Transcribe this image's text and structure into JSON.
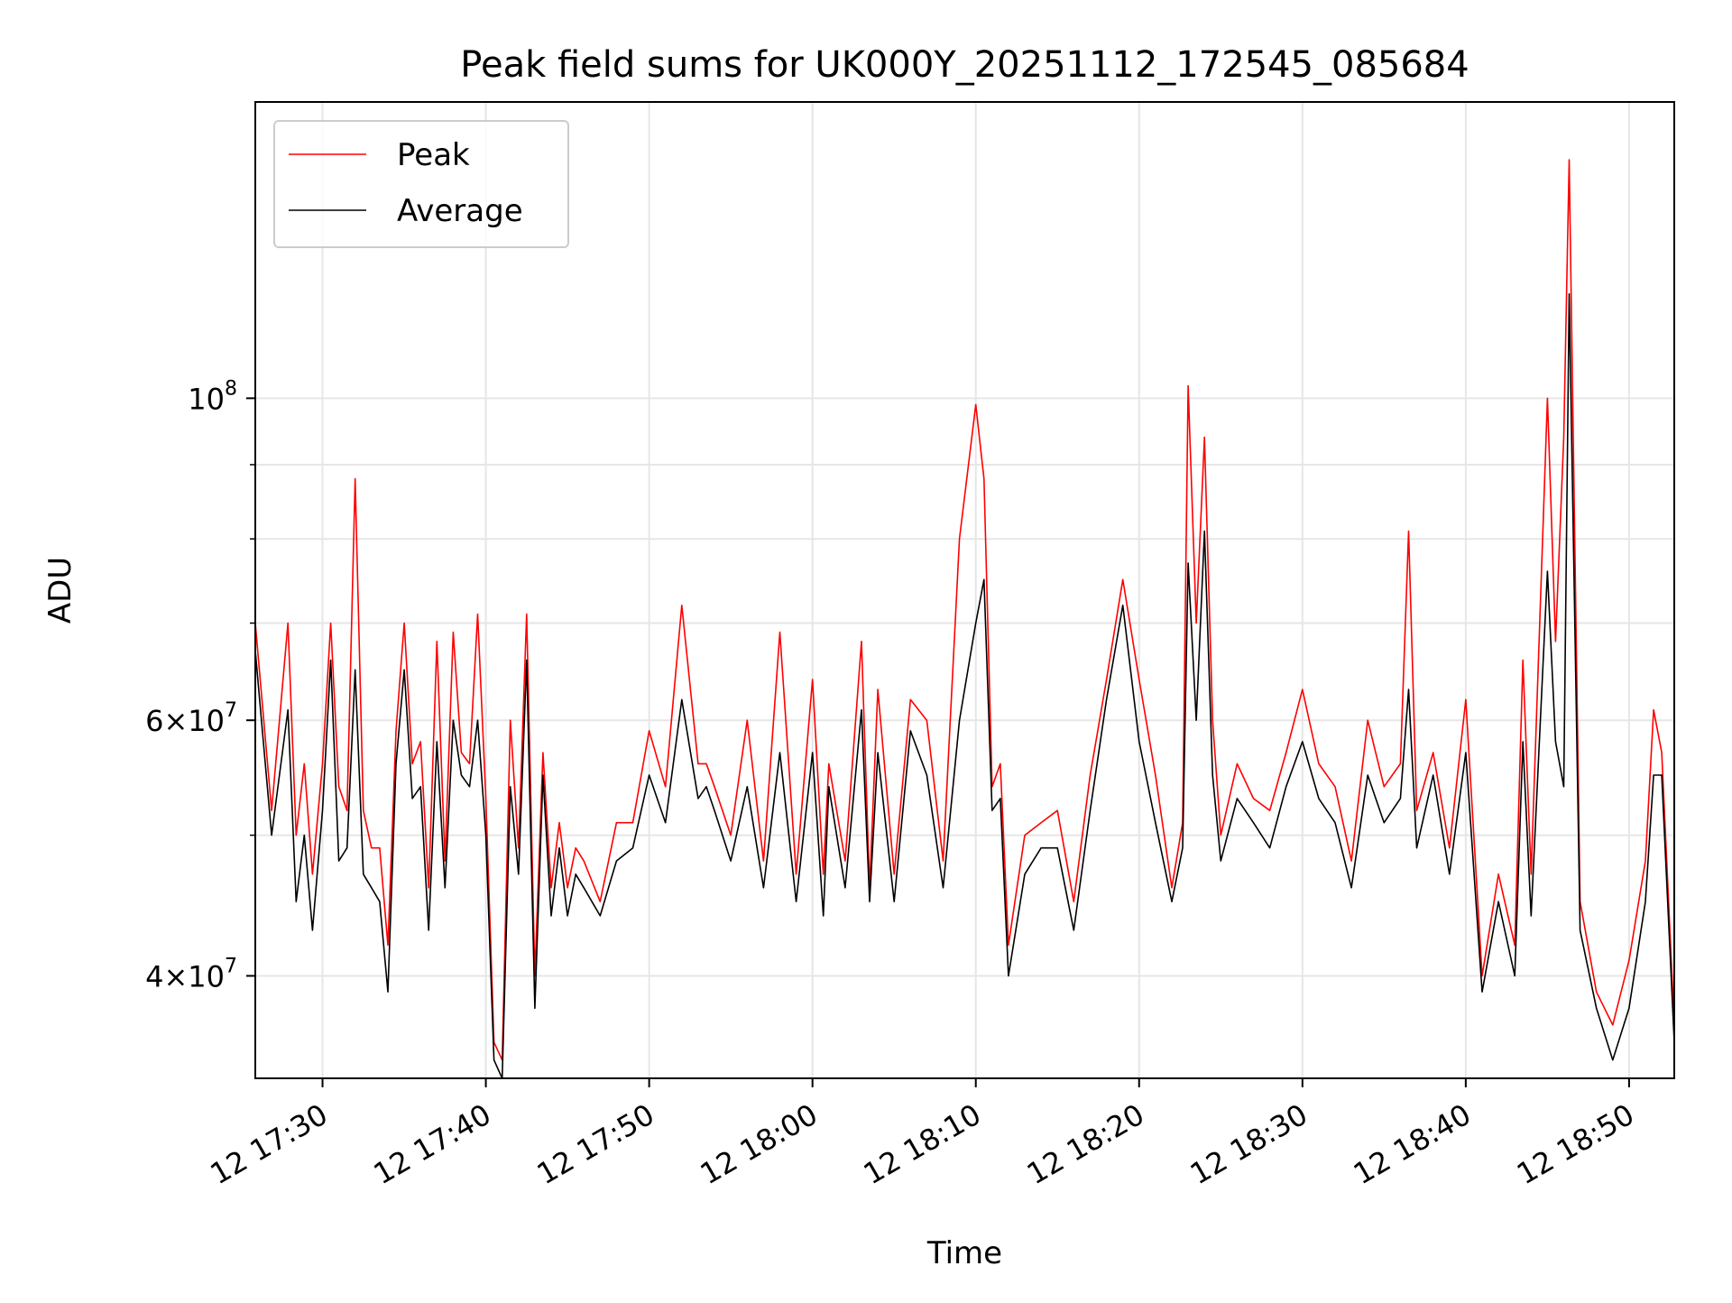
{
  "chart_data": {
    "type": "line",
    "title": "Peak field sums for UK000Y_20251112_172545_085684",
    "xlabel": "Time",
    "ylabel": "ADU",
    "y_scale": "log",
    "ylim": [
      34000000,
      160000000
    ],
    "xlim": [
      "2025-11-12 17:25:53",
      "2025-11-12 18:52:46"
    ],
    "x_ticks": [
      "12 17:30",
      "12 17:40",
      "12 17:50",
      "12 18:00",
      "12 18:10",
      "12 18:20",
      "12 18:30",
      "12 18:40",
      "12 18:50"
    ],
    "y_ticks_major": [
      {
        "value": 40000000,
        "mantissa": "4",
        "exponent": "7"
      },
      {
        "value": 60000000,
        "mantissa": "6",
        "exponent": "7"
      },
      {
        "value": 100000000,
        "mantissa": "",
        "exponent": "8"
      }
    ],
    "y_ticks_minor": [
      50000000,
      70000000,
      80000000,
      90000000
    ],
    "grid": true,
    "legend_position": "top-left",
    "x": [
      "17:25:53",
      "17:26:53",
      "17:27:53",
      "17:28:23",
      "17:28:53",
      "17:29:23",
      "17:30:00",
      "17:30:30",
      "17:31:00",
      "17:31:30",
      "17:32:00",
      "17:32:30",
      "17:33:00",
      "17:33:30",
      "17:34:00",
      "17:34:30",
      "17:35:00",
      "17:35:30",
      "17:36:00",
      "17:36:30",
      "17:37:00",
      "17:37:30",
      "17:38:00",
      "17:38:30",
      "17:39:00",
      "17:39:30",
      "17:40:00",
      "17:40:30",
      "17:41:00",
      "17:41:30",
      "17:42:00",
      "17:42:30",
      "17:43:00",
      "17:43:30",
      "17:44:00",
      "17:44:30",
      "17:45:00",
      "17:45:30",
      "17:46:00",
      "17:47:00",
      "17:48:00",
      "17:49:00",
      "17:50:00",
      "17:51:00",
      "17:52:00",
      "17:53:00",
      "17:53:30",
      "17:54:00",
      "17:55:00",
      "17:56:00",
      "17:57:00",
      "17:58:00",
      "17:59:00",
      "18:00:00",
      "18:00:40",
      "18:01:00",
      "18:02:00",
      "18:03:00",
      "18:03:30",
      "18:04:00",
      "18:05:00",
      "18:06:00",
      "18:07:00",
      "18:08:00",
      "18:09:00",
      "18:10:00",
      "18:10:30",
      "18:11:00",
      "18:11:30",
      "18:12:00",
      "18:13:00",
      "18:14:00",
      "18:15:00",
      "18:16:00",
      "18:17:00",
      "18:18:00",
      "18:19:00",
      "18:20:00",
      "18:21:00",
      "18:22:00",
      "18:22:40",
      "18:23:00",
      "18:23:30",
      "18:24:00",
      "18:24:30",
      "18:25:00",
      "18:26:00",
      "18:27:00",
      "18:28:00",
      "18:29:00",
      "18:30:00",
      "18:31:00",
      "18:32:00",
      "18:33:00",
      "18:34:00",
      "18:35:00",
      "18:36:00",
      "18:36:30",
      "18:37:00",
      "18:38:00",
      "18:39:00",
      "18:40:00",
      "18:41:00",
      "18:42:00",
      "18:43:00",
      "18:43:30",
      "18:44:00",
      "18:45:00",
      "18:45:30",
      "18:46:00",
      "18:46:20",
      "18:47:00",
      "18:48:00",
      "18:49:00",
      "18:50:00",
      "18:51:00",
      "18:51:30",
      "18:52:00",
      "18:52:46"
    ],
    "series": [
      {
        "name": "Peak",
        "color": "#ff0000",
        "values": [
          70000000,
          52000000,
          70000000,
          50000000,
          56000000,
          47000000,
          56000000,
          70000000,
          54000000,
          52000000,
          88000000,
          52000000,
          49000000,
          49000000,
          42000000,
          59000000,
          70000000,
          56000000,
          58000000,
          46000000,
          68000000,
          48000000,
          69000000,
          57000000,
          56000000,
          71000000,
          53000000,
          36000000,
          35000000,
          60000000,
          49000000,
          71000000,
          40000000,
          57000000,
          46000000,
          51000000,
          46000000,
          49000000,
          48000000,
          45000000,
          51000000,
          51000000,
          59000000,
          54000000,
          72000000,
          56000000,
          56000000,
          54000000,
          50000000,
          60000000,
          48000000,
          69000000,
          47000000,
          64000000,
          47000000,
          56000000,
          48000000,
          68000000,
          46000000,
          63000000,
          47000000,
          62000000,
          60000000,
          48000000,
          80000000,
          99000000,
          88000000,
          54000000,
          56000000,
          42000000,
          50000000,
          51000000,
          52000000,
          45000000,
          55000000,
          64000000,
          75000000,
          64000000,
          55000000,
          46000000,
          51000000,
          102000000,
          70000000,
          94000000,
          60000000,
          50000000,
          56000000,
          53000000,
          52000000,
          57000000,
          63000000,
          56000000,
          54000000,
          48000000,
          60000000,
          54000000,
          56000000,
          81000000,
          52000000,
          57000000,
          49000000,
          62000000,
          40000000,
          47000000,
          42000000,
          66000000,
          47000000,
          100000000,
          68000000,
          94000000,
          146000000,
          45000000,
          39000000,
          37000000,
          41000000,
          48000000,
          61000000,
          57000000,
          37000000
        ]
      },
      {
        "name": "Average",
        "color": "#000000",
        "values": [
          67000000,
          50000000,
          61000000,
          45000000,
          50000000,
          43000000,
          52000000,
          66000000,
          48000000,
          49000000,
          65000000,
          47000000,
          46000000,
          45000000,
          39000000,
          56000000,
          65000000,
          53000000,
          54000000,
          43000000,
          58000000,
          46000000,
          60000000,
          55000000,
          54000000,
          60000000,
          50000000,
          35000000,
          34000000,
          54000000,
          47000000,
          66000000,
          38000000,
          55000000,
          44000000,
          49000000,
          44000000,
          47000000,
          46000000,
          44000000,
          48000000,
          49000000,
          55000000,
          51000000,
          62000000,
          53000000,
          54000000,
          52000000,
          48000000,
          54000000,
          46000000,
          57000000,
          45000000,
          57000000,
          44000000,
          54000000,
          46000000,
          61000000,
          45000000,
          57000000,
          45000000,
          59000000,
          55000000,
          46000000,
          60000000,
          70000000,
          75000000,
          52000000,
          53000000,
          40000000,
          47000000,
          49000000,
          49000000,
          43000000,
          52000000,
          62000000,
          72000000,
          58000000,
          51000000,
          45000000,
          49000000,
          77000000,
          60000000,
          81000000,
          55000000,
          48000000,
          53000000,
          51000000,
          49000000,
          54000000,
          58000000,
          53000000,
          51000000,
          46000000,
          55000000,
          51000000,
          53000000,
          63000000,
          49000000,
          55000000,
          47000000,
          57000000,
          39000000,
          45000000,
          40000000,
          58000000,
          44000000,
          76000000,
          58000000,
          54000000,
          118000000,
          43000000,
          38000000,
          35000000,
          38000000,
          45000000,
          55000000,
          55000000,
          36000000
        ]
      }
    ]
  }
}
